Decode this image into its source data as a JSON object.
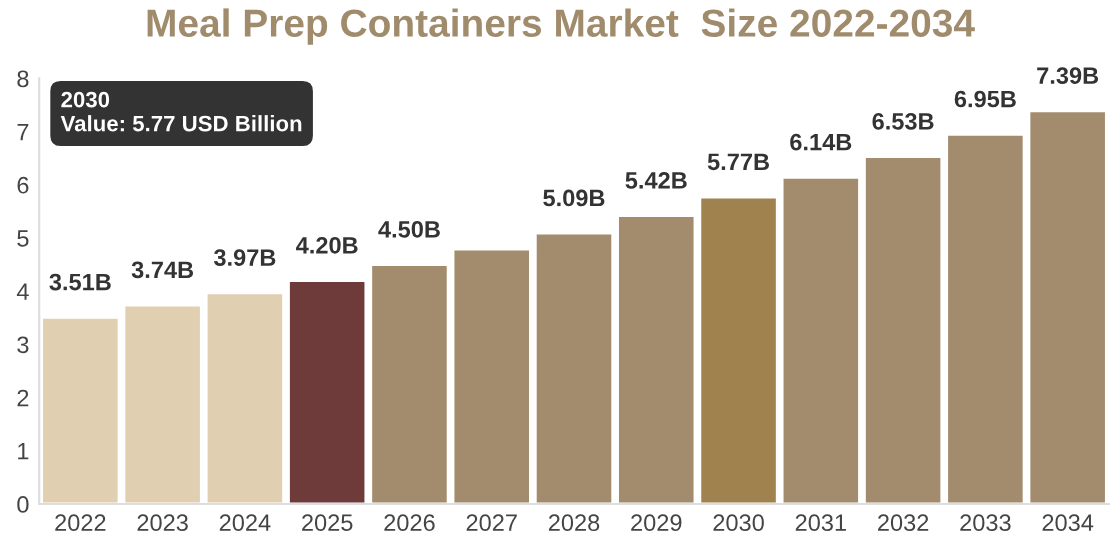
{
  "chart_data": {
    "type": "bar",
    "title": "Meal Prep Containers Market  Size 2022-2034",
    "categories": [
      "2022",
      "2023",
      "2024",
      "2025",
      "2026",
      "2027",
      "2028",
      "2029",
      "2030",
      "2031",
      "2032",
      "2033",
      "2034"
    ],
    "values": [
      3.51,
      3.74,
      3.97,
      4.2,
      4.5,
      4.79,
      5.09,
      5.42,
      5.77,
      6.14,
      6.53,
      6.95,
      7.39
    ],
    "colors": [
      "#e0cfb1",
      "#e0cfb1",
      "#e0cfb1",
      "#6e3a3a",
      "#a38b6d",
      "#a38b6d",
      "#a38b6d",
      "#a38b6d",
      "#a0824f",
      "#a38b6d",
      "#a38b6d",
      "#a38b6d",
      "#a38b6d"
    ],
    "value_labels": [
      "3.51B",
      "3.74B",
      "3.97B",
      "4.20B",
      "4.50B",
      null,
      "5.09B",
      "5.42B",
      "5.77B",
      "6.14B",
      "6.53B",
      "6.95B",
      "7.39B"
    ],
    "ylim": [
      0,
      8
    ],
    "yticks": [
      0,
      1,
      2,
      3,
      4,
      5,
      6,
      7,
      8
    ],
    "grid": false,
    "annotations": [
      "2030\nValue: 5.77 USD Billion"
    ]
  }
}
